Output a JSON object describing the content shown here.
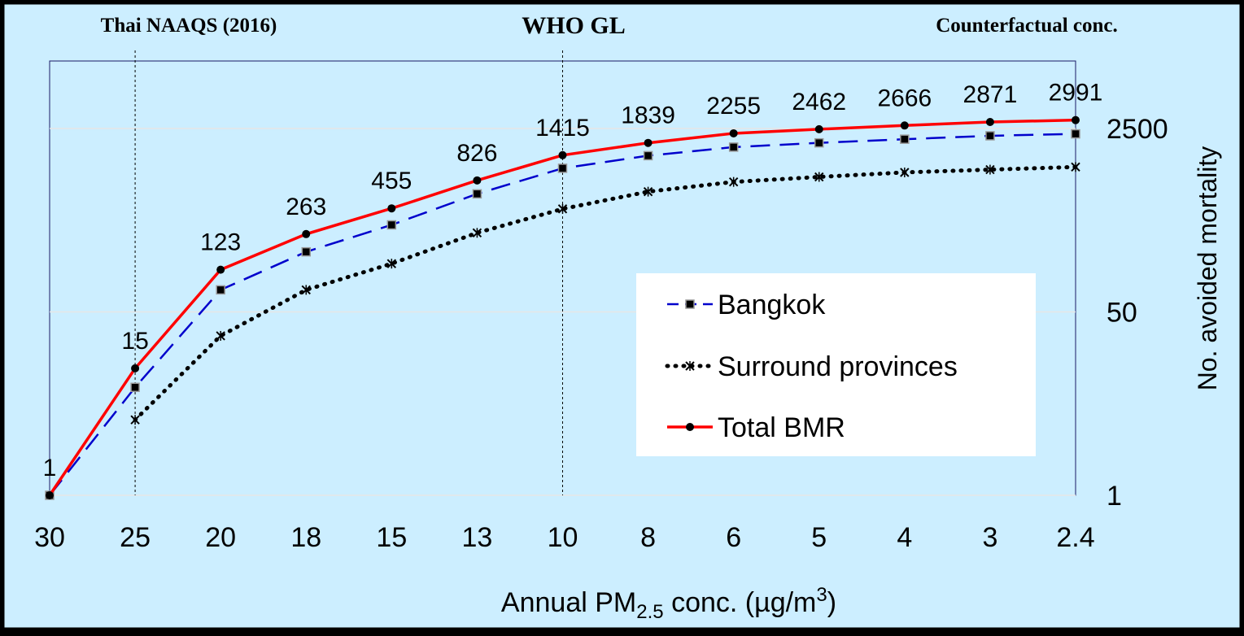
{
  "colors": {
    "background": "#cceeff",
    "border": "#000000",
    "gridline": "#e6e6e6",
    "bangkok": "#0000cc",
    "surround": "#000000",
    "total": "#ff0000",
    "legend_bg": "#ffffff"
  },
  "chart_data": {
    "type": "line",
    "xlabel_main": "Annual PM",
    "xlabel_sub": "2.5",
    "xlabel_rest": " conc. (µg/m",
    "xlabel_sup": "3",
    "xlabel_end": ")",
    "ylabel": "No. avoided mortality",
    "y_scale": "log",
    "y_ticks": [
      "1",
      "50",
      "2500"
    ],
    "y_tick_values": [
      1,
      50,
      2500
    ],
    "ylim": [
      1,
      2500
    ],
    "x_reversed": true,
    "categories": [
      "30",
      "25",
      "20",
      "18",
      "15",
      "13",
      "10",
      "8",
      "6",
      "5",
      "4",
      "3",
      "2.4"
    ],
    "reference_lines": [
      {
        "x": "25",
        "label": "Thai NAAQS (2016)"
      },
      {
        "x": "10",
        "label": "WHO GL"
      }
    ],
    "corner_note": "Counterfactual conc.",
    "data_labels": [
      "1",
      "15",
      "123",
      "263",
      "455",
      "826",
      "1415",
      "1839",
      "2255",
      "2462",
      "2666",
      "2871",
      "2991"
    ],
    "series": [
      {
        "name": "Bangkok",
        "style": "dashed",
        "marker": "square",
        "values": [
          1,
          10,
          80,
          180,
          320,
          620,
          1070,
          1400,
          1680,
          1840,
          1990,
          2140,
          2230
        ]
      },
      {
        "name": "Surround provinces",
        "style": "dotted",
        "marker": "x",
        "values": [
          null,
          5,
          30,
          80,
          140,
          270,
          450,
          650,
          800,
          890,
          980,
          1040,
          1100
        ]
      },
      {
        "name": "Total BMR",
        "style": "solid",
        "marker": "dot",
        "values": [
          1,
          15,
          123,
          263,
          455,
          826,
          1415,
          1839,
          2255,
          2462,
          2666,
          2871,
          2991
        ]
      }
    ],
    "grid": true,
    "legend_position": "right-center"
  }
}
